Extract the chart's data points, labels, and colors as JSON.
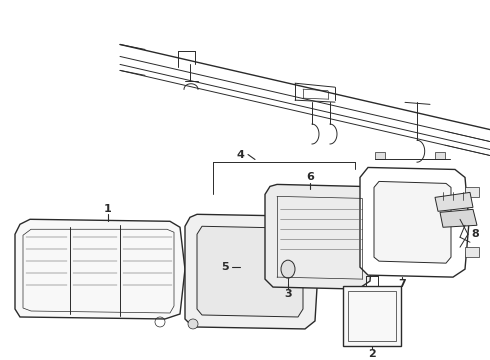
{
  "bg_color": "#ffffff",
  "line_color": "#2a2a2a",
  "fig_width": 4.9,
  "fig_height": 3.6,
  "dpi": 100,
  "label_fs": 8,
  "lw_main": 1.0,
  "lw_med": 0.7,
  "lw_thin": 0.5
}
